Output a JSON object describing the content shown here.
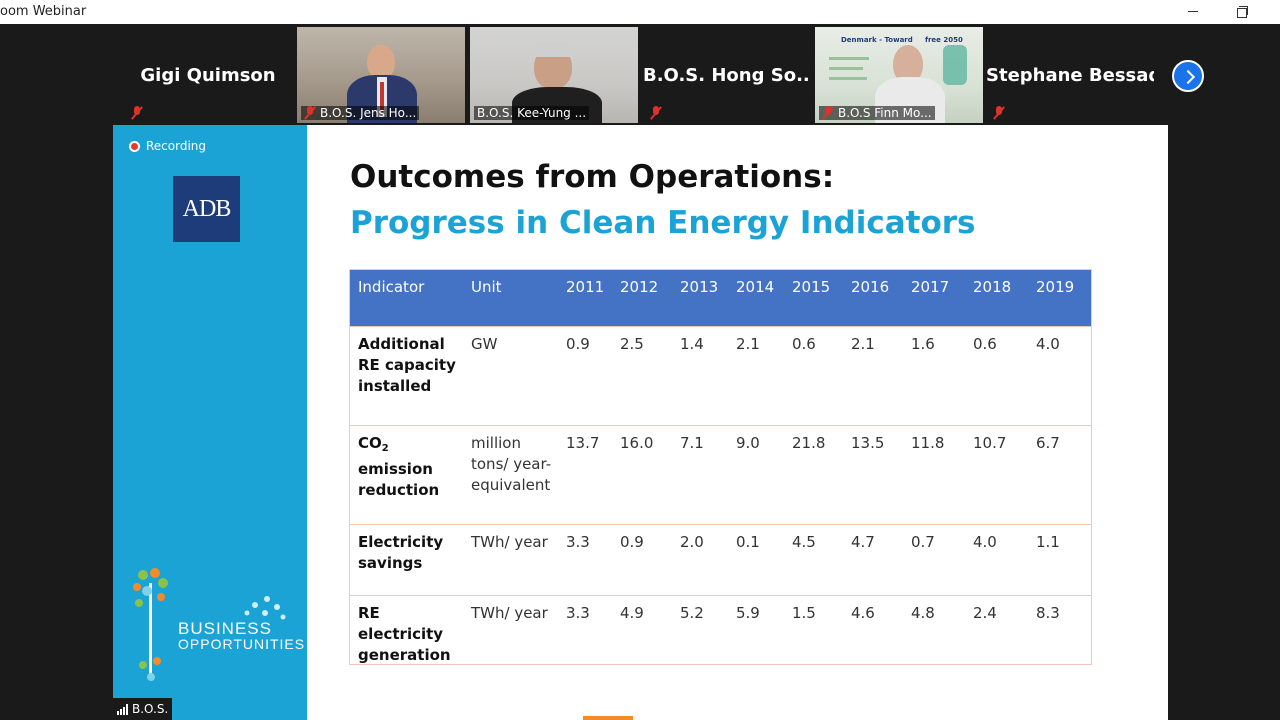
{
  "window": {
    "title": "oom Webinar"
  },
  "participants": [
    {
      "name": "Gigi Quimson",
      "type": "name-only"
    },
    {
      "name": "B.O.S. Jens Ho...",
      "type": "video"
    },
    {
      "name": "B.O.S. Kee-Yung ...",
      "type": "video",
      "muted": false
    },
    {
      "name": "B.O.S. Hong So...",
      "type": "name-only"
    },
    {
      "name": "B.O.S Finn Mo...",
      "type": "video",
      "background_text": "Denmark - Toward     free 2050"
    },
    {
      "name": "Stephane Bessadi",
      "type": "name-only"
    }
  ],
  "slide": {
    "recording_label": "Recording",
    "logo_text": "ADB",
    "branding_line1": "BUSINESS",
    "branding_line2": "OPPORTUNITIES",
    "presenter_tag": "B.O.S.",
    "title": "Outcomes from Operations:",
    "subtitle": "Progress in Clean Energy Indicators",
    "table": {
      "headers": [
        "Indicator",
        "Unit",
        "2011",
        "2012",
        "2013",
        "2014",
        "2015",
        "2016",
        "2017",
        "2018",
        "2019"
      ],
      "rows": [
        {
          "indicator": "Additional RE capacity installed",
          "unit": "GW",
          "values": [
            "0.9",
            "2.5",
            "1.4",
            "2.1",
            "0.6",
            "2.1",
            "1.6",
            "0.6",
            "4.0"
          ]
        },
        {
          "indicator_pre": "CO",
          "indicator_sub": "2",
          "indicator_post": " emission reduction",
          "unit": "million tons/ year-equivalent",
          "values": [
            "13.7",
            "16.0",
            "7.1",
            "9.0",
            "21.8",
            "13.5",
            "11.8",
            "10.7",
            "6.7"
          ]
        },
        {
          "indicator": "Electricity savings",
          "unit": "TWh/ year",
          "values": [
            "3.3",
            "0.9",
            "2.0",
            "0.1",
            "4.5",
            "4.7",
            "0.7",
            "4.0",
            "1.1"
          ]
        },
        {
          "indicator": "RE electricity generation",
          "unit": "TWh/ year",
          "values": [
            "3.3",
            "4.9",
            "5.2",
            "5.9",
            "1.5",
            "4.6",
            "4.8",
            "2.4",
            "8.3"
          ]
        }
      ]
    }
  },
  "colors": {
    "header_blue": "#4472c4",
    "slide_blue": "#1ba3d6",
    "adb_navy": "#1f3c7a",
    "mute_red": "#e0302a"
  }
}
